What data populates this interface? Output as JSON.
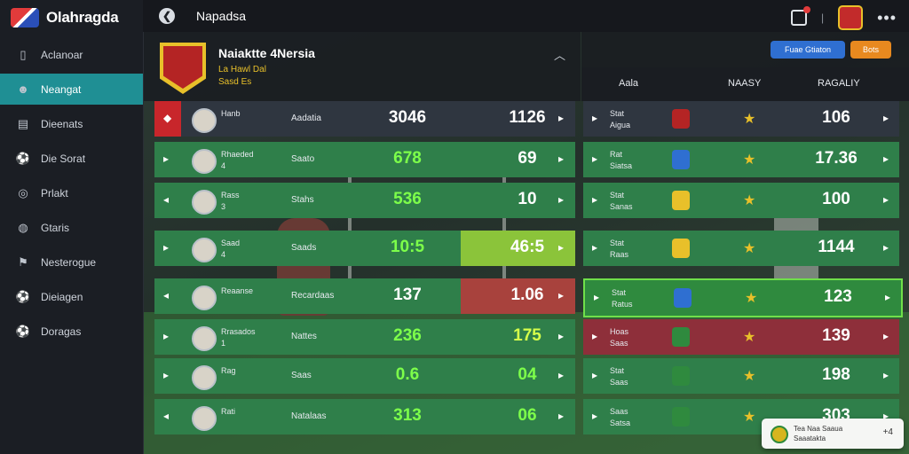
{
  "app": {
    "name": "Olahragda"
  },
  "sidebar": {
    "items": [
      {
        "label": "Aclanoar",
        "icon": "file-icon",
        "glyph": "▯"
      },
      {
        "label": "Neangat",
        "icon": "player-avatar-icon",
        "glyph": "☻"
      },
      {
        "label": "Dieenats",
        "icon": "list-icon",
        "glyph": "▤"
      },
      {
        "label": "Die Sorat",
        "icon": "ball-icon",
        "glyph": "⚽"
      },
      {
        "label": "Prlakt",
        "icon": "target-icon",
        "glyph": "◎"
      },
      {
        "label": "Gtaris",
        "icon": "globe-icon",
        "glyph": "◍"
      },
      {
        "label": "Nesterogue",
        "icon": "flag-icon",
        "glyph": "⚑"
      },
      {
        "label": "Dieiagen",
        "icon": "ball-icon",
        "glyph": "⚽"
      },
      {
        "label": "Doragas",
        "icon": "ball-icon",
        "glyph": "⚽"
      }
    ]
  },
  "topbar": {
    "title": "Napadsa"
  },
  "team": {
    "name": "Naiaktte 4Nersia",
    "sub1": "La Hawl Dal",
    "sub2": "Sasd Es"
  },
  "right_header": {
    "button_primary": "Fuae Gtiaton",
    "button_secondary": "Bots"
  },
  "columns": {
    "c1": "Aala",
    "c2": "NAASY",
    "c3": "RAGALIY"
  },
  "left_rows": [
    {
      "name": "Hanb",
      "num": "",
      "pos": "Aadatia",
      "v1": "3046",
      "v2": "1126",
      "arrow": "◆",
      "bg": "#2f3640",
      "v1c": "#ffffff",
      "v2c": "#ffffff"
    },
    {
      "name": "Rhaeded",
      "num": "4",
      "pos": "Saato",
      "v1": "678",
      "v2": "69",
      "arrow": "▸",
      "bg": "#2f7f4a",
      "v1c": "#7dff4a",
      "v2c": "#ffffff"
    },
    {
      "name": "Rass",
      "num": "3",
      "pos": "Stahs",
      "v1": "536",
      "v2": "10",
      "arrow": "◂",
      "bg": "#2f7f4a",
      "v1c": "#7dff4a",
      "v2c": "#ffffff"
    },
    {
      "name": "Saad",
      "num": "4",
      "pos": "Saads",
      "v1": "10:5",
      "v2": "46:5",
      "arrow": "▸",
      "bg": "#2f7f4a",
      "v1c": "#7dff4a",
      "v2c": "#ffffff"
    },
    {
      "name": "Reaanse",
      "num": "",
      "pos": "Recardaas",
      "v1": "137",
      "v2": "1.06",
      "arrow": "◂",
      "bg": "#2f7f4a",
      "v1c": "#ffffff",
      "v2c": "#ffffff"
    },
    {
      "name": "Rrasados",
      "num": "1",
      "pos": "Nattes",
      "v1": "236",
      "v2": "175",
      "arrow": "▸",
      "bg": "#2f7f4a",
      "v1c": "#7dff4a",
      "v2c": "#d6ff4a"
    },
    {
      "name": "Rag",
      "num": "",
      "pos": "Saas",
      "v1": "0.6",
      "v2": "04",
      "arrow": "▸",
      "bg": "#2f7f4a",
      "v1c": "#7dff4a",
      "v2c": "#7dff4a"
    },
    {
      "name": "Rati",
      "num": "",
      "pos": "Natalaas",
      "v1": "313",
      "v2": "06",
      "arrow": "◂",
      "bg": "#2f7f4a",
      "v1c": "#7dff4a",
      "v2c": "#7dff4a"
    }
  ],
  "right_rows": [
    {
      "name1": "Stat",
      "name2": "Aigua",
      "val": "106",
      "bg": "#2f3640",
      "crest": "#b42424"
    },
    {
      "name1": "Rat",
      "name2": "Siatsa",
      "val": "17.36",
      "bg": "#2f7f4a",
      "crest": "#2f6fd1"
    },
    {
      "name1": "Stat",
      "name2": "Sanas",
      "val": "100",
      "bg": "#2f7f4a",
      "crest": "#e8c02a"
    },
    {
      "name1": "Stat",
      "name2": "Raas",
      "val": "1144",
      "bg": "#2f7f4a",
      "crest": "#e8c02a"
    },
    {
      "name1": "Stat",
      "name2": "Ratus",
      "val": "123",
      "bg": "#2f8a3e",
      "crest": "#2f6fd1"
    },
    {
      "name1": "Hoas",
      "name2": "Saas",
      "val": "139",
      "bg": "#8e2f3a",
      "crest": "#2f8a3e"
    },
    {
      "name1": "Stat",
      "name2": "Saas",
      "val": "198",
      "bg": "#2f7f4a",
      "crest": "#2f8a3e"
    },
    {
      "name1": "Saas",
      "name2": "Satsa",
      "val": "303",
      "bg": "#2f7f4a",
      "crest": "#2f8a3e"
    }
  ],
  "toast": {
    "line1": "Tea Naa Saaua",
    "line2": "Saaatakta",
    "action": "+4"
  }
}
